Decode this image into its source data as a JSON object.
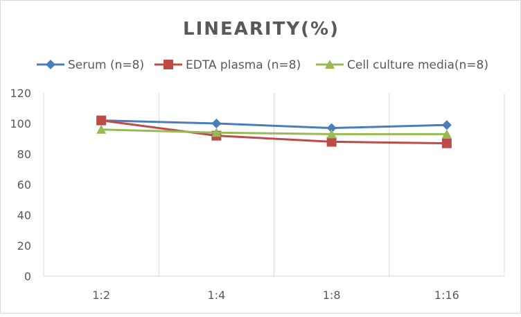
{
  "chart_data": {
    "type": "line",
    "title": "LINEARITY(%)",
    "categories": [
      "1:2",
      "1:4",
      "1:8",
      "1:16"
    ],
    "ylim": [
      0,
      120
    ],
    "yticks": [
      0,
      20,
      40,
      60,
      80,
      100,
      120
    ],
    "grid": "vertical",
    "legend": "top",
    "series": [
      {
        "name": "Serum (n=8)",
        "values": [
          102,
          100,
          97,
          99
        ],
        "color": "#4a7ebb",
        "marker": "diamond"
      },
      {
        "name": "EDTA plasma (n=8)",
        "values": [
          102,
          92,
          88,
          87
        ],
        "color": "#be4b48",
        "marker": "square"
      },
      {
        "name": "Cell culture media(n=8)",
        "values": [
          96,
          94,
          93,
          93
        ],
        "color": "#98b954",
        "marker": "triangle"
      }
    ]
  }
}
